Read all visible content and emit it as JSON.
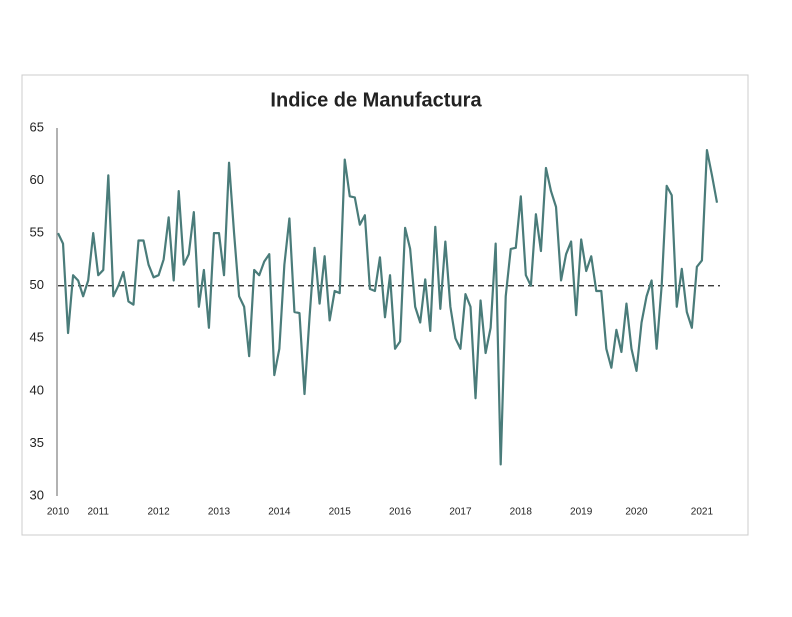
{
  "chart_data": {
    "type": "line",
    "title": "Indice de Manufactura",
    "categories": [
      "2010",
      null,
      null,
      null,
      null,
      null,
      null,
      null,
      "2011",
      null,
      null,
      null,
      null,
      null,
      null,
      null,
      null,
      null,
      null,
      null,
      "2012",
      null,
      null,
      null,
      null,
      null,
      null,
      null,
      null,
      null,
      null,
      null,
      "2013",
      null,
      null,
      null,
      null,
      null,
      null,
      null,
      null,
      null,
      null,
      null,
      "2014",
      null,
      null,
      null,
      null,
      null,
      null,
      null,
      null,
      null,
      null,
      null,
      "2015",
      null,
      null,
      null,
      null,
      null,
      null,
      null,
      null,
      null,
      null,
      null,
      "2016",
      null,
      null,
      null,
      null,
      null,
      null,
      null,
      null,
      null,
      null,
      null,
      "2017",
      null,
      null,
      null,
      null,
      null,
      null,
      null,
      null,
      null,
      null,
      null,
      "2018",
      null,
      null,
      null,
      null,
      null,
      null,
      null,
      null,
      null,
      null,
      null,
      "2019",
      null,
      null,
      null,
      null,
      null,
      null,
      null,
      null,
      null,
      null,
      "2020",
      null,
      null,
      null,
      null,
      null,
      null,
      null,
      null,
      null,
      null,
      null,
      null,
      "2021",
      null,
      null,
      null
    ],
    "values": [
      55,
      54,
      45.5,
      51,
      50.5,
      49,
      50.5,
      55,
      51,
      51.5,
      60.5,
      49,
      50,
      51.3,
      48.5,
      48.2,
      54.3,
      54.3,
      52,
      50.8,
      51,
      52.5,
      56.5,
      50.5,
      59,
      52,
      53,
      57,
      48,
      51.5,
      46,
      55,
      55,
      51,
      61.7,
      55,
      49,
      48,
      43.3,
      51.5,
      51,
      52.3,
      53,
      41.5,
      44,
      52,
      56.4,
      47.5,
      47.4,
      39.7,
      47,
      53.6,
      48.3,
      52.8,
      46.7,
      49.5,
      49.3,
      62,
      58.5,
      58.4,
      55.8,
      56.7,
      49.7,
      49.5,
      52.7,
      47,
      51,
      44,
      44.7,
      55.5,
      53.5,
      48,
      46.5,
      50.6,
      45.7,
      55.6,
      47.8,
      54.2,
      48,
      45,
      44,
      49.2,
      48,
      39.3,
      48.6,
      43.6,
      46,
      54,
      33,
      49,
      53.5,
      53.6,
      58.5,
      51,
      50,
      56.8,
      53.3,
      61.2,
      59,
      57.5,
      50.5,
      53,
      54.2,
      47.2,
      54.4,
      51.4,
      52.8,
      49.5,
      49.5,
      44,
      42.2,
      45.8,
      43.7,
      48.3,
      44,
      41.9,
      46.5,
      49,
      50.5,
      44,
      50,
      59.5,
      58.6,
      48,
      51.6,
      47.5,
      46,
      51.8,
      52.4,
      62.9,
      60.5,
      57.9
    ],
    "color": "#4a7c7a",
    "reference_line": 50,
    "ylim": [
      30,
      65
    ],
    "yticks": [
      30,
      35,
      40,
      45,
      50,
      55,
      60,
      65
    ]
  }
}
